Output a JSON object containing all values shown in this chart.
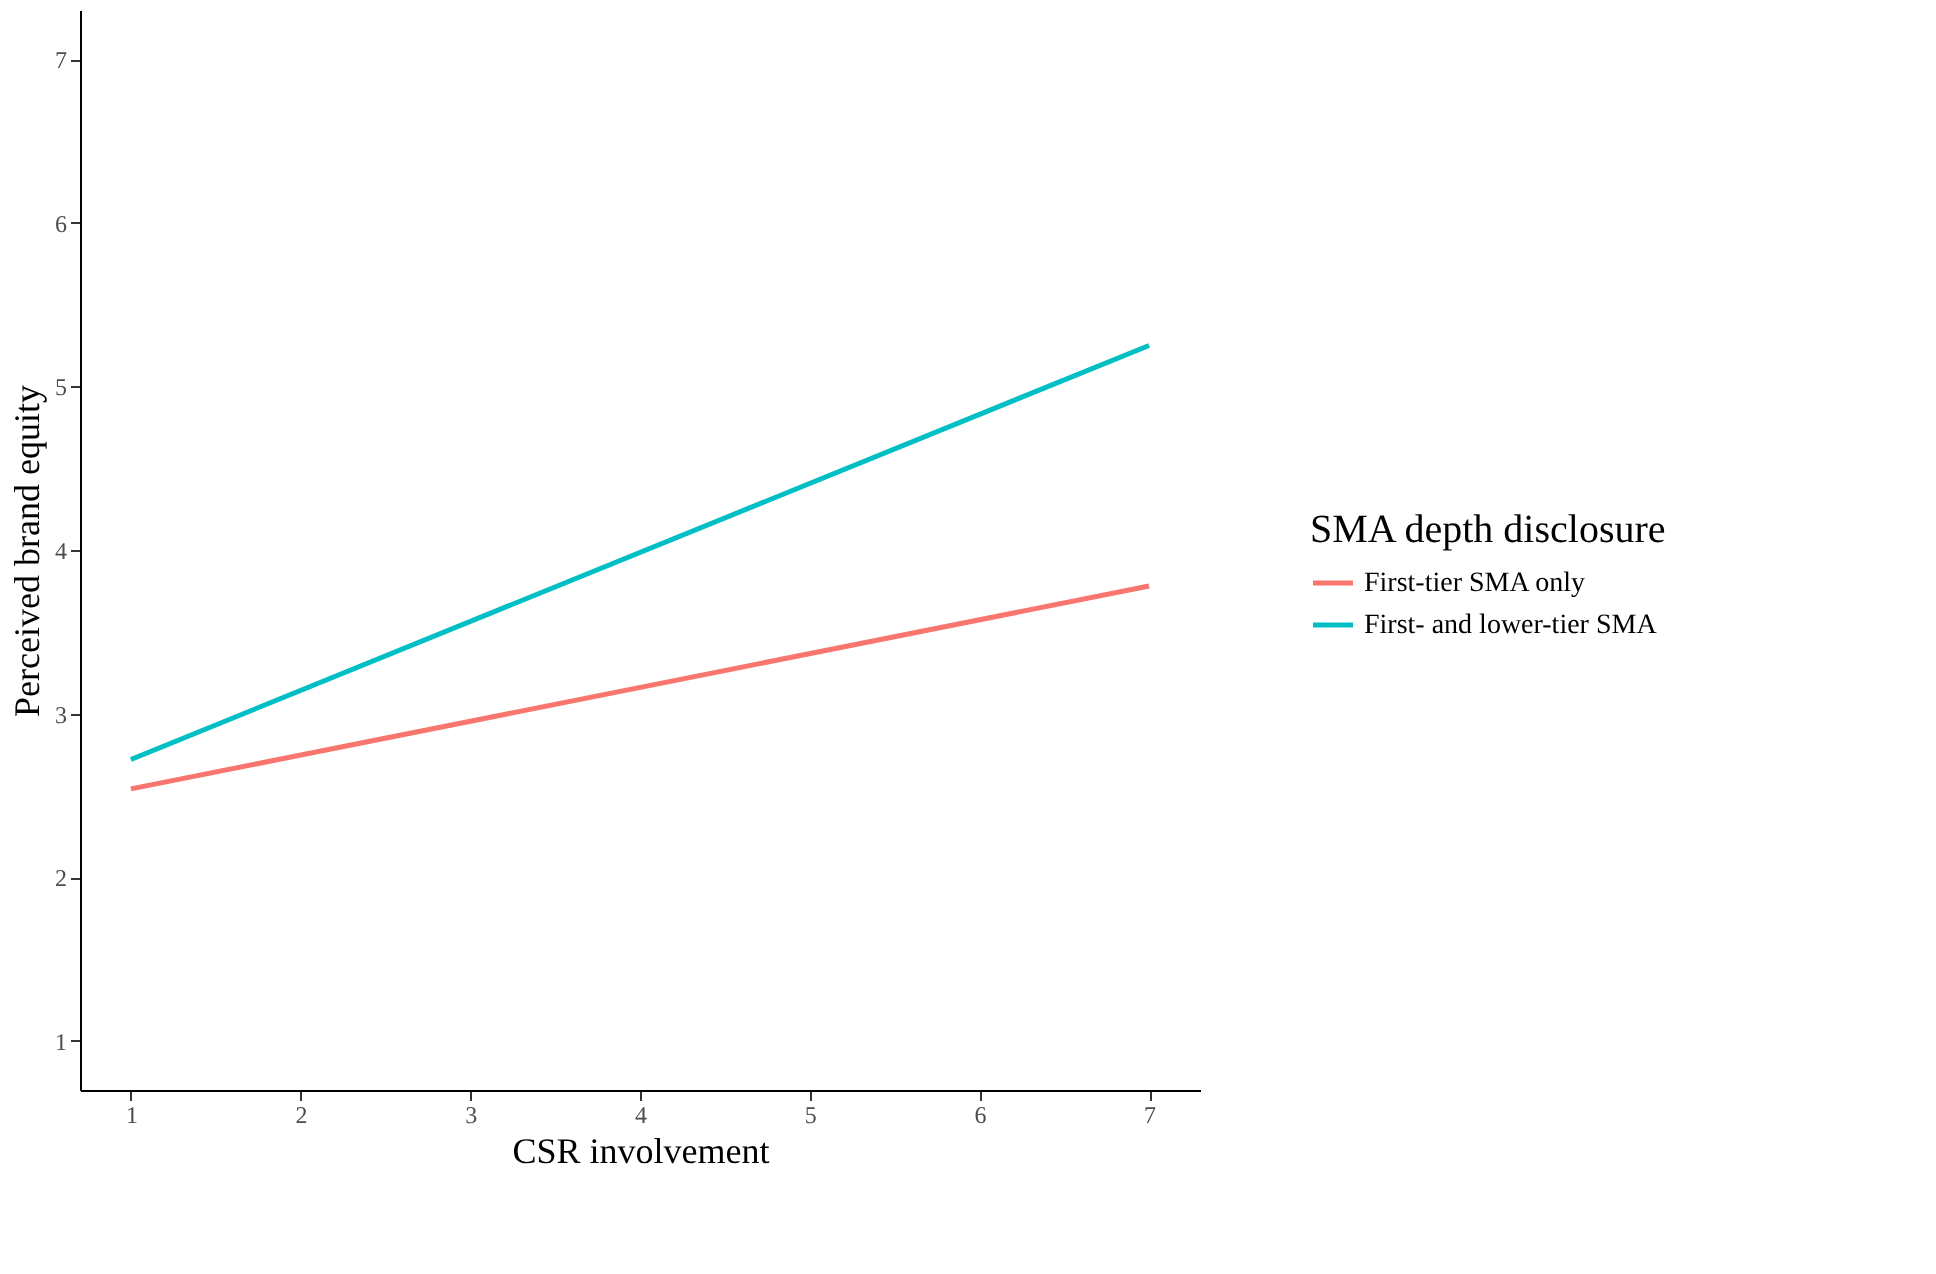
{
  "chart_data": {
    "type": "line",
    "xlabel": "CSR involvement",
    "ylabel": "Perceived brand equity",
    "legend_title": "SMA depth disclosure",
    "x": [
      1,
      7
    ],
    "series": [
      {
        "name": "First-tier SMA only",
        "color": "#f8766d",
        "values": [
          2.54,
          3.78
        ]
      },
      {
        "name": "First- and lower-tier SMA",
        "color": "#00bfc4",
        "values": [
          2.72,
          5.25
        ]
      }
    ],
    "xlim": [
      0.7,
      7.3
    ],
    "xticks": [
      1,
      2,
      3,
      4,
      5,
      6,
      7
    ],
    "ylim": [
      0.7,
      7.3
    ],
    "yticks": [
      1,
      2,
      3,
      4,
      5,
      6,
      7
    ],
    "grid": false,
    "legend": "right",
    "marker": "none",
    "line_style": "solid"
  }
}
